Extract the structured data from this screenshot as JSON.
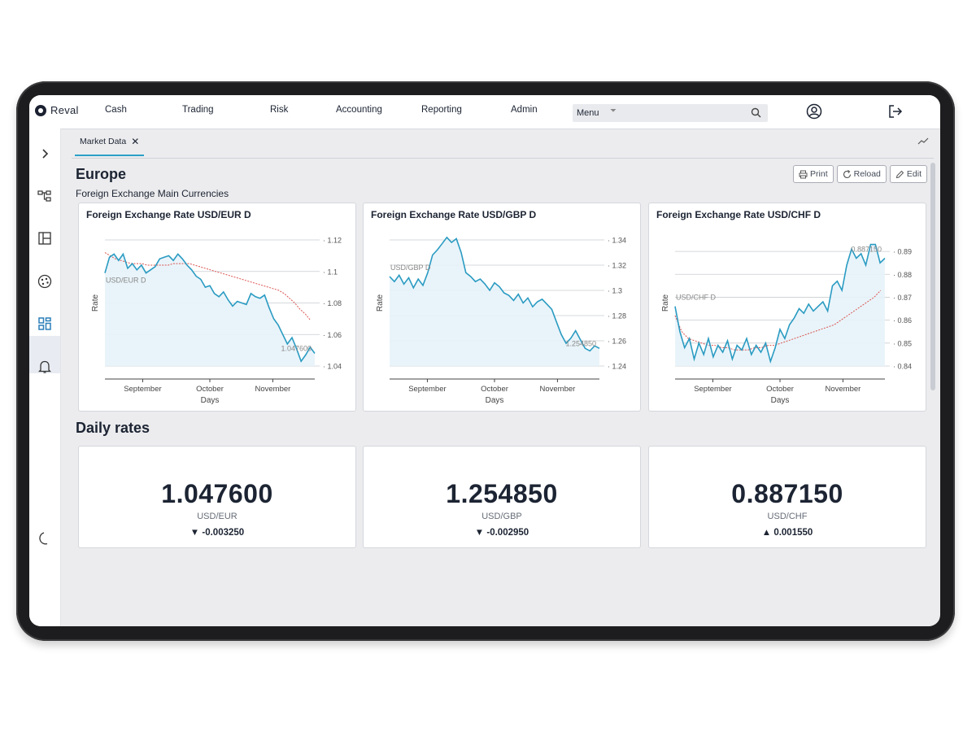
{
  "app": {
    "name": "Reval"
  },
  "nav": {
    "items": [
      "Cash",
      "Trading",
      "Risk",
      "Accounting",
      "Reporting",
      "Admin"
    ]
  },
  "menu": {
    "label": "Menu"
  },
  "tab": {
    "label": "Market Data"
  },
  "page": {
    "title": "Europe",
    "subtitle": "Foreign Exchange Main Currencies",
    "daily_title": "Daily rates"
  },
  "actions": {
    "print": "Print",
    "reload": "Reload",
    "edit": "Edit"
  },
  "colors": {
    "line": "#2a9bc2",
    "avg": "#d9534f",
    "fill": "#e7f3fa",
    "accent": "#2aa0c7"
  },
  "chart_data": [
    {
      "type": "line",
      "title": "Foreign Exchange Rate USD/EUR D",
      "xlabel": "Days",
      "ylabel": "Rate",
      "series_label": "USD/EUR D",
      "last_label": "1.047600",
      "x_ticks": [
        "September",
        "October",
        "November"
      ],
      "y_ticks": [
        1.04,
        1.06,
        1.08,
        1.1,
        1.12
      ],
      "ylim": [
        1.04,
        1.12
      ],
      "values": [
        1.099,
        1.109,
        1.111,
        1.107,
        1.111,
        1.102,
        1.105,
        1.101,
        1.104,
        1.099,
        1.101,
        1.103,
        1.108,
        1.109,
        1.11,
        1.107,
        1.111,
        1.108,
        1.104,
        1.101,
        1.097,
        1.095,
        1.09,
        1.091,
        1.086,
        1.084,
        1.087,
        1.082,
        1.078,
        1.081,
        1.08,
        1.079,
        1.086,
        1.084,
        1.083,
        1.085,
        1.077,
        1.07,
        1.066,
        1.06,
        1.054,
        1.058,
        1.051,
        1.043,
        1.047,
        1.052,
        1.048
      ],
      "avg_values": [
        1.112,
        1.11,
        1.108,
        1.107,
        1.106,
        1.105,
        1.105,
        1.105,
        1.104,
        1.104,
        1.104,
        1.104,
        1.104,
        1.105,
        1.105,
        1.105,
        1.105,
        1.104,
        1.103,
        1.102,
        1.101,
        1.1,
        1.099,
        1.098,
        1.097,
        1.096,
        1.095,
        1.094,
        1.093,
        1.092,
        1.091,
        1.09,
        1.089,
        1.088,
        1.086,
        1.083,
        1.08,
        1.076,
        1.073,
        1.069
      ],
      "grid": true
    },
    {
      "type": "line",
      "title": "Foreign Exchange Rate USD/GBP D",
      "xlabel": "Days",
      "ylabel": "Rate",
      "series_label": "USD/GBP D",
      "last_label": "1.254850",
      "x_ticks": [
        "September",
        "October",
        "November"
      ],
      "y_ticks": [
        1.24,
        1.26,
        1.28,
        1.3,
        1.32,
        1.34
      ],
      "ylim": [
        1.24,
        1.34
      ],
      "values": [
        1.311,
        1.307,
        1.312,
        1.305,
        1.31,
        1.302,
        1.309,
        1.304,
        1.314,
        1.328,
        1.332,
        1.337,
        1.342,
        1.338,
        1.341,
        1.33,
        1.314,
        1.311,
        1.307,
        1.309,
        1.305,
        1.3,
        1.306,
        1.303,
        1.298,
        1.296,
        1.292,
        1.297,
        1.29,
        1.294,
        1.287,
        1.291,
        1.293,
        1.289,
        1.285,
        1.275,
        1.265,
        1.258,
        1.262,
        1.268,
        1.261,
        1.254,
        1.252,
        1.256,
        1.254
      ],
      "grid": true
    },
    {
      "type": "line",
      "title": "Foreign Exchange Rate USD/CHF D",
      "xlabel": "Days",
      "ylabel": "Rate",
      "series_label": "USD/CHF D",
      "last_label": "0.887150",
      "x_ticks": [
        "September",
        "October",
        "November"
      ],
      "y_ticks": [
        0.84,
        0.85,
        0.86,
        0.87,
        0.88,
        0.89
      ],
      "ylim": [
        0.84,
        0.895
      ],
      "values": [
        0.866,
        0.855,
        0.848,
        0.852,
        0.843,
        0.85,
        0.845,
        0.852,
        0.844,
        0.849,
        0.846,
        0.851,
        0.843,
        0.849,
        0.847,
        0.852,
        0.845,
        0.849,
        0.846,
        0.85,
        0.842,
        0.848,
        0.856,
        0.852,
        0.858,
        0.861,
        0.865,
        0.863,
        0.867,
        0.864,
        0.866,
        0.868,
        0.864,
        0.875,
        0.877,
        0.873,
        0.884,
        0.891,
        0.887,
        0.889,
        0.884,
        0.893,
        0.893,
        0.885,
        0.887
      ],
      "avg_values": [
        0.862,
        0.855,
        0.852,
        0.851,
        0.85,
        0.849,
        0.849,
        0.848,
        0.848,
        0.847,
        0.847,
        0.847,
        0.848,
        0.848,
        0.849,
        0.849,
        0.85,
        0.851,
        0.852,
        0.853,
        0.854,
        0.855,
        0.856,
        0.857,
        0.858,
        0.86,
        0.862,
        0.864,
        0.866,
        0.868,
        0.87,
        0.873
      ],
      "grid": true
    }
  ],
  "daily_rates": [
    {
      "value": "1.047600",
      "pair": "USD/EUR",
      "change": "-0.003250",
      "direction": "down"
    },
    {
      "value": "1.254850",
      "pair": "USD/GBP",
      "change": "-0.002950",
      "direction": "down"
    },
    {
      "value": "0.887150",
      "pair": "USD/CHF",
      "change": "0.001550",
      "direction": "up"
    }
  ]
}
